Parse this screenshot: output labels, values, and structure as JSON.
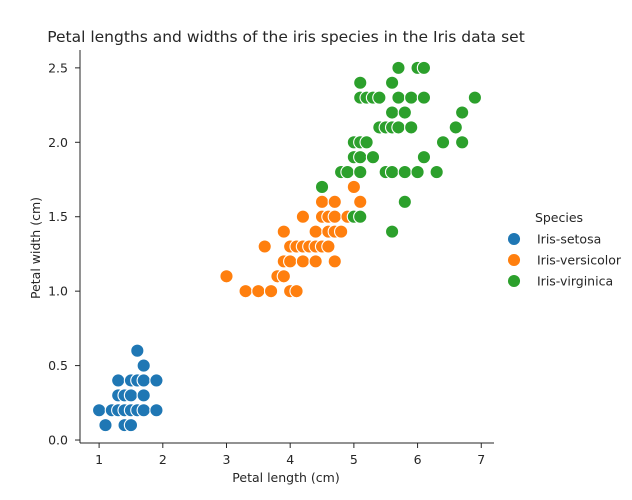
{
  "chart_data": {
    "type": "scatter",
    "title": "Petal lengths and widths of the iris species in the Iris data set",
    "xlabel": "Petal length (cm)",
    "ylabel": "Petal width (cm)",
    "xlim": [
      0.7,
      7.2
    ],
    "ylim": [
      -0.02,
      2.62
    ],
    "xticks": [
      "1",
      "2",
      "3",
      "4",
      "5",
      "6",
      "7"
    ],
    "yticks": [
      "0.0",
      "0.5",
      "1.0",
      "1.5",
      "2.0",
      "2.5"
    ],
    "grid": false,
    "legend": {
      "title": "Species",
      "position": "right"
    },
    "series": [
      {
        "name": "Iris-setosa",
        "color": "#1f77b4",
        "points": [
          [
            1.0,
            0.2
          ],
          [
            1.1,
            0.1
          ],
          [
            1.2,
            0.2
          ],
          [
            1.3,
            0.2
          ],
          [
            1.3,
            0.3
          ],
          [
            1.3,
            0.4
          ],
          [
            1.4,
            0.1
          ],
          [
            1.4,
            0.2
          ],
          [
            1.4,
            0.3
          ],
          [
            1.5,
            0.1
          ],
          [
            1.5,
            0.2
          ],
          [
            1.5,
            0.3
          ],
          [
            1.5,
            0.4
          ],
          [
            1.6,
            0.2
          ],
          [
            1.6,
            0.4
          ],
          [
            1.6,
            0.6
          ],
          [
            1.7,
            0.2
          ],
          [
            1.7,
            0.3
          ],
          [
            1.7,
            0.4
          ],
          [
            1.7,
            0.5
          ],
          [
            1.9,
            0.2
          ],
          [
            1.9,
            0.4
          ]
        ]
      },
      {
        "name": "Iris-versicolor",
        "color": "#ff7f0e",
        "points": [
          [
            3.0,
            1.1
          ],
          [
            3.3,
            1.0
          ],
          [
            3.5,
            1.0
          ],
          [
            3.6,
            1.3
          ],
          [
            3.7,
            1.0
          ],
          [
            3.8,
            1.1
          ],
          [
            3.9,
            1.1
          ],
          [
            3.9,
            1.2
          ],
          [
            3.9,
            1.4
          ],
          [
            4.0,
            1.0
          ],
          [
            4.0,
            1.2
          ],
          [
            4.0,
            1.3
          ],
          [
            4.1,
            1.0
          ],
          [
            4.1,
            1.3
          ],
          [
            4.2,
            1.2
          ],
          [
            4.2,
            1.3
          ],
          [
            4.2,
            1.5
          ],
          [
            4.3,
            1.3
          ],
          [
            4.4,
            1.2
          ],
          [
            4.4,
            1.3
          ],
          [
            4.4,
            1.4
          ],
          [
            4.5,
            1.3
          ],
          [
            4.5,
            1.5
          ],
          [
            4.5,
            1.6
          ],
          [
            4.6,
            1.3
          ],
          [
            4.6,
            1.4
          ],
          [
            4.6,
            1.5
          ],
          [
            4.7,
            1.2
          ],
          [
            4.7,
            1.4
          ],
          [
            4.7,
            1.5
          ],
          [
            4.7,
            1.6
          ],
          [
            4.8,
            1.4
          ],
          [
            4.8,
            1.8
          ],
          [
            4.9,
            1.5
          ],
          [
            5.0,
            1.7
          ],
          [
            5.1,
            1.6
          ]
        ]
      },
      {
        "name": "Iris-virginica",
        "color": "#2ca02c",
        "points": [
          [
            4.5,
            1.7
          ],
          [
            4.8,
            1.8
          ],
          [
            4.9,
            1.8
          ],
          [
            5.0,
            1.5
          ],
          [
            5.0,
            1.9
          ],
          [
            5.0,
            2.0
          ],
          [
            5.1,
            1.5
          ],
          [
            5.1,
            1.8
          ],
          [
            5.1,
            1.9
          ],
          [
            5.1,
            2.0
          ],
          [
            5.1,
            2.3
          ],
          [
            5.1,
            2.4
          ],
          [
            5.2,
            2.0
          ],
          [
            5.2,
            2.3
          ],
          [
            5.3,
            1.9
          ],
          [
            5.3,
            2.3
          ],
          [
            5.4,
            2.1
          ],
          [
            5.4,
            2.3
          ],
          [
            5.5,
            1.8
          ],
          [
            5.5,
            2.1
          ],
          [
            5.6,
            1.4
          ],
          [
            5.6,
            1.8
          ],
          [
            5.6,
            2.1
          ],
          [
            5.6,
            2.2
          ],
          [
            5.6,
            2.4
          ],
          [
            5.7,
            2.1
          ],
          [
            5.7,
            2.3
          ],
          [
            5.7,
            2.5
          ],
          [
            5.8,
            1.6
          ],
          [
            5.8,
            1.8
          ],
          [
            5.8,
            2.2
          ],
          [
            5.9,
            2.1
          ],
          [
            5.9,
            2.3
          ],
          [
            6.0,
            1.8
          ],
          [
            6.0,
            2.5
          ],
          [
            6.1,
            1.9
          ],
          [
            6.1,
            2.3
          ],
          [
            6.1,
            2.5
          ],
          [
            6.3,
            1.8
          ],
          [
            6.4,
            2.0
          ],
          [
            6.6,
            2.1
          ],
          [
            6.7,
            2.0
          ],
          [
            6.7,
            2.2
          ],
          [
            6.9,
            2.3
          ]
        ]
      }
    ]
  }
}
